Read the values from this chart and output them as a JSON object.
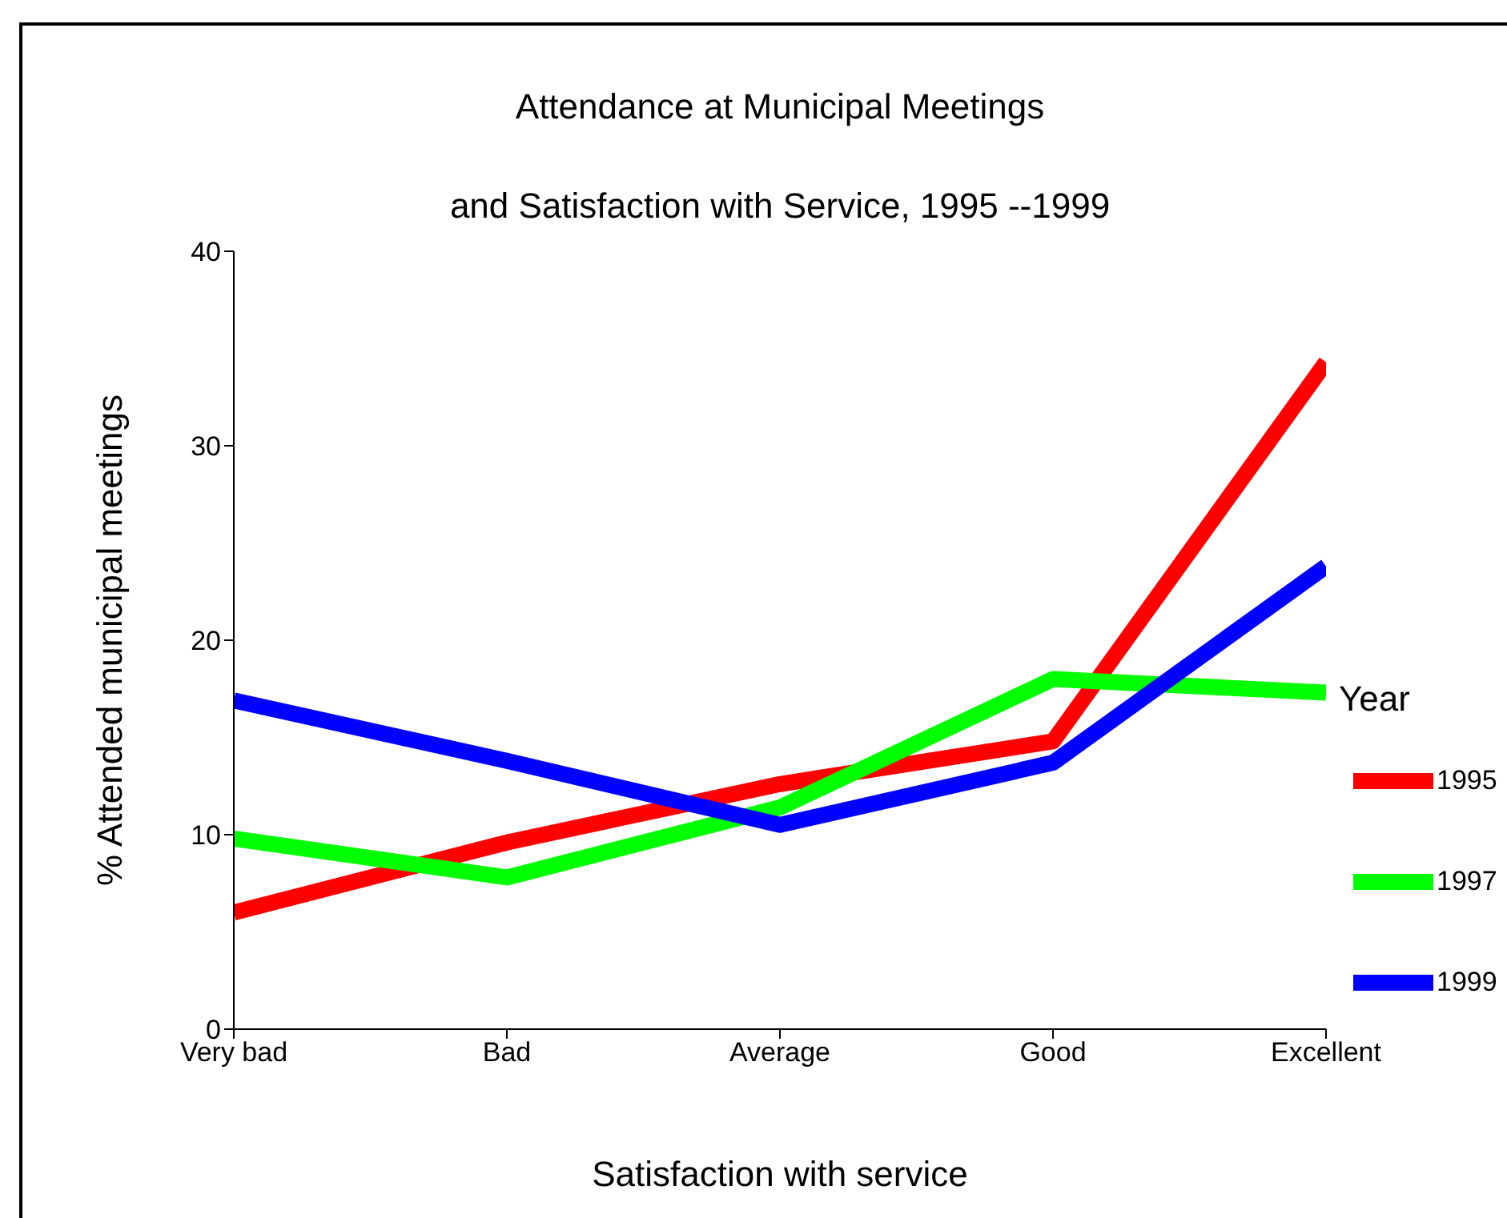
{
  "chart_data": {
    "type": "line",
    "title": "Attendance at Municipal Meetings\nand Satisfaction with Service, 1995 --1999",
    "xlabel": "Satisfaction with service",
    "ylabel": "% Attended municipal meetings",
    "legend_title": "Year",
    "categories": [
      "Very bad",
      "Bad",
      "Average",
      "Good",
      "Excellent"
    ],
    "series": [
      {
        "name": "1995",
        "color": "#ff0000",
        "values": [
          6.0,
          9.6,
          12.6,
          14.8,
          34.3
        ]
      },
      {
        "name": "1997",
        "color": "#00ff00",
        "values": [
          9.8,
          7.8,
          11.4,
          18.0,
          17.3
        ]
      },
      {
        "name": "1999",
        "color": "#0000ff",
        "values": [
          16.9,
          13.8,
          10.5,
          13.7,
          23.8
        ]
      }
    ],
    "ylim": [
      0,
      40
    ],
    "yticks": [
      0,
      10,
      20,
      30,
      40
    ],
    "grid": false,
    "legend": "right",
    "marker": "none",
    "line_style": "solid"
  }
}
